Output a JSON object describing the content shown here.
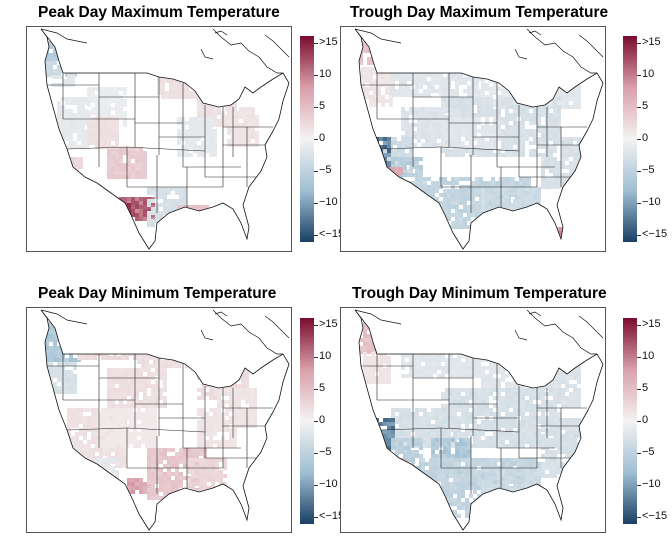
{
  "colors": {
    "high": "#7a0c2e",
    "mid_high": "#d9a0aa",
    "neutral": "#f4f2f2",
    "mid_low": "#9fbfd3",
    "low": "#1b3f63"
  },
  "colorbar": {
    "labels": [
      ">15",
      "10",
      "5",
      "0",
      "−5",
      "−10",
      "<−15"
    ],
    "max": 15,
    "min": -15
  },
  "panels": [
    {
      "title": "Peak Day Maximum Temperature"
    },
    {
      "title": "Trough Day Maximum Temperature"
    },
    {
      "title": "Peak Day Minimum Temperature"
    },
    {
      "title": "Trough Day Minimum Temperature"
    }
  ]
}
